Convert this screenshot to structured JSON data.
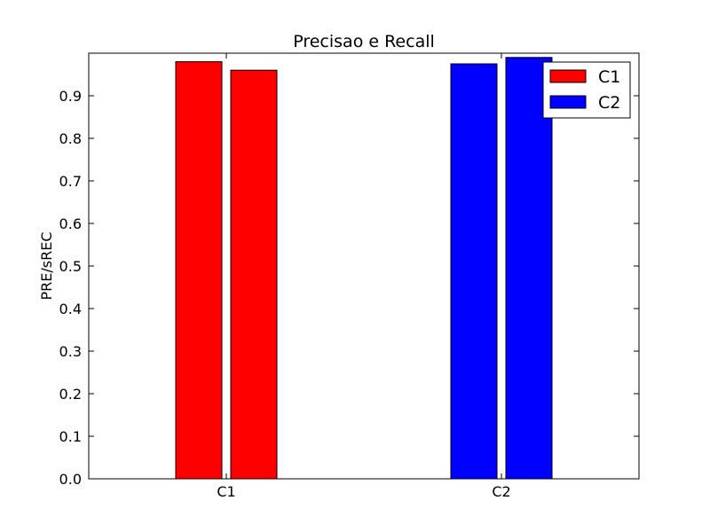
{
  "chart_data": {
    "type": "bar",
    "title": "Precisao e Recall",
    "xlabel": "",
    "ylabel": "PRE/sREC",
    "categories": [
      "C1",
      "C2"
    ],
    "ylim": [
      0,
      1.0
    ],
    "yticks": [
      0.0,
      0.1,
      0.2,
      0.3,
      0.4,
      0.5,
      0.6,
      0.7,
      0.8,
      0.9
    ],
    "grid": false,
    "legend_position": "top-right",
    "series": [
      {
        "name": "C1",
        "color": "#ff0000",
        "values": [
          0.98,
          0.96
        ]
      },
      {
        "name": "C2",
        "color": "#0000ff",
        "values": [
          0.975,
          0.99
        ]
      }
    ]
  }
}
